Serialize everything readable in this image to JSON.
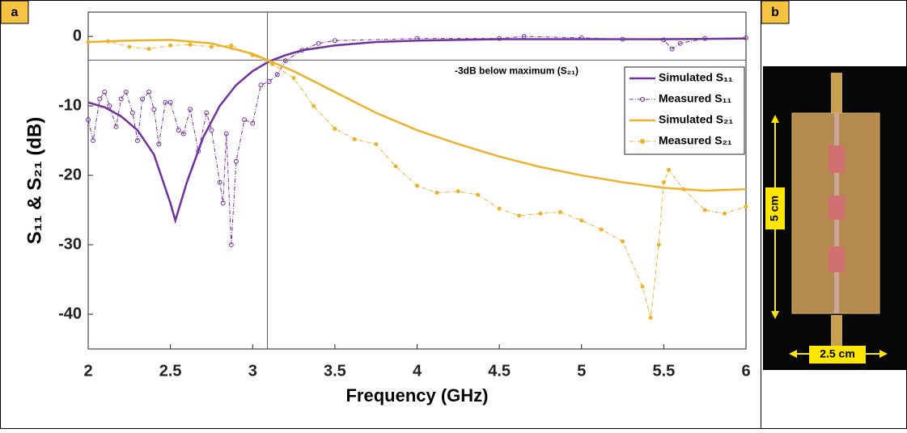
{
  "panel_labels": [
    "a",
    "b"
  ],
  "chart_data": {
    "type": "line",
    "xlabel": "Frequency (GHz)",
    "ylabel": "S₁₁ & S₂₁ (dB)",
    "xlim": [
      2,
      6
    ],
    "ylim": [
      -45,
      3.5
    ],
    "xticks": [
      2,
      2.5,
      3,
      3.5,
      4,
      4.5,
      5,
      5.5,
      6
    ],
    "yticks": [
      0,
      -10,
      -20,
      -30,
      -40
    ],
    "legend": "upper right",
    "vline": 3.09,
    "hline": -3.4,
    "annotation": "-3dB below maximum (S₂₁)",
    "series": [
      {
        "name": "Simulated S₁₁",
        "color": "#7030a0",
        "style": "solid",
        "x": [
          2,
          2.1,
          2.2,
          2.3,
          2.4,
          2.5,
          2.53,
          2.6,
          2.7,
          2.8,
          2.9,
          3.0,
          3.1,
          3.2,
          3.3,
          3.5,
          3.75,
          4,
          4.5,
          5,
          5.5,
          6
        ],
        "values": [
          -9.5,
          -10.2,
          -11.5,
          -13.5,
          -17,
          -24,
          -26.5,
          -21,
          -14.5,
          -10,
          -7,
          -5,
          -3.6,
          -2.7,
          -2,
          -1.3,
          -0.8,
          -0.6,
          -0.4,
          -0.4,
          -0.4,
          -0.3
        ]
      },
      {
        "name": "Measured S₁₁",
        "color": "#7030a0",
        "style": "dashdot",
        "marker": "star",
        "x": [
          2,
          2.03,
          2.07,
          2.1,
          2.13,
          2.17,
          2.2,
          2.23,
          2.27,
          2.3,
          2.33,
          2.37,
          2.4,
          2.43,
          2.47,
          2.5,
          2.55,
          2.58,
          2.62,
          2.67,
          2.72,
          2.75,
          2.8,
          2.82,
          2.84,
          2.87,
          2.9,
          2.95,
          3.0,
          3.05,
          3.1,
          3.15,
          3.2,
          3.3,
          3.4,
          3.5,
          4,
          4.5,
          4.65,
          5,
          5.25,
          5.5,
          5.55,
          5.6,
          5.75,
          6
        ],
        "values": [
          -12,
          -15,
          -9,
          -8,
          -10,
          -13,
          -9,
          -8,
          -11,
          -15,
          -9,
          -8,
          -10.5,
          -15.5,
          -9.5,
          -9.5,
          -13.5,
          -14,
          -10.5,
          -16.5,
          -11,
          -13.5,
          -21,
          -24,
          -14,
          -30,
          -18,
          -12,
          -12.5,
          -7,
          -6.5,
          -5.5,
          -3.5,
          -2,
          -1,
          -0.6,
          -0.3,
          -0.3,
          0,
          -0.2,
          -0.4,
          -0.5,
          -1.8,
          -1,
          -0.3,
          -0.2
        ]
      },
      {
        "name": "Simulated S₂₁",
        "color": "#eeb127",
        "style": "solid",
        "x": [
          2,
          2.25,
          2.5,
          2.75,
          3,
          3.1,
          3.25,
          3.5,
          3.75,
          4,
          4.25,
          4.5,
          4.75,
          5,
          5.25,
          5.5,
          5.75,
          6
        ],
        "values": [
          -0.8,
          -0.6,
          -0.5,
          -1,
          -2.5,
          -3.5,
          -5,
          -8,
          -11,
          -13.5,
          -15.5,
          -17.3,
          -18.8,
          -20,
          -21,
          -21.8,
          -22.2,
          -22
        ]
      },
      {
        "name": "Measured S₂₁",
        "color": "#eeb127",
        "style": "dashdot",
        "marker": "dot",
        "x": [
          2,
          2.12,
          2.25,
          2.37,
          2.5,
          2.62,
          2.75,
          2.87,
          3.0,
          3.12,
          3.25,
          3.37,
          3.5,
          3.62,
          3.75,
          3.87,
          4,
          4.12,
          4.25,
          4.37,
          4.5,
          4.62,
          4.75,
          4.87,
          5,
          5.12,
          5.25,
          5.37,
          5.42,
          5.47,
          5.5,
          5.53,
          5.62,
          5.75,
          5.87,
          6
        ],
        "values": [
          -0.8,
          -0.7,
          -1.5,
          -1.8,
          -1.3,
          -1.2,
          -1.5,
          -1.3,
          -2.7,
          -4,
          -6,
          -10,
          -13.3,
          -14.8,
          -15.5,
          -18.7,
          -21.5,
          -22.5,
          -22.3,
          -22.8,
          -24.8,
          -25.8,
          -25.5,
          -25.3,
          -26.5,
          -27.8,
          -29.5,
          -36,
          -40.5,
          -30,
          -21,
          -19.2,
          -22,
          -25,
          -25.5,
          -24.5
        ]
      }
    ]
  },
  "photo": {
    "height_label": "5 cm",
    "width_label": "2.5 cm"
  }
}
